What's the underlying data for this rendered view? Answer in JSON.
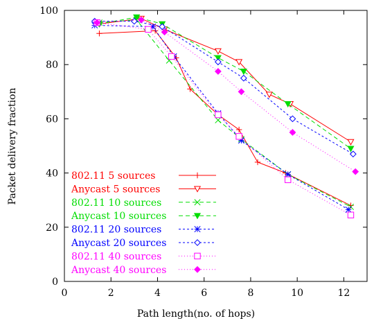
{
  "chart_data": {
    "type": "line",
    "title": "",
    "xlabel": "Path length(no. of hops)",
    "ylabel": "Packet delivery fraction",
    "xlim": [
      0,
      13
    ],
    "ylim": [
      0,
      100
    ],
    "xticks": [
      0,
      2,
      4,
      6,
      8,
      10,
      12
    ],
    "yticks": [
      0,
      20,
      40,
      60,
      80,
      100
    ],
    "grid": false,
    "legend_position": "bottom-left",
    "series": [
      {
        "name": "802.11 5 sources",
        "color": "#ff0000",
        "dash": "",
        "marker": "plus",
        "x": [
          1.5,
          3.9,
          4.8,
          5.4,
          6.6,
          7.5,
          8.3,
          9.5,
          12.3
        ],
        "y": [
          91.5,
          92.5,
          82.5,
          71,
          61.5,
          56,
          44,
          40,
          28
        ]
      },
      {
        "name": "Anycast 5 sources",
        "color": "#ff0000",
        "dash": "",
        "marker": "triangle-down",
        "x": [
          1.5,
          3.3,
          4.3,
          6.6,
          7.5,
          8.8,
          9.7,
          12.3
        ],
        "y": [
          95,
          97,
          93,
          85,
          81,
          69,
          65.5,
          51.5
        ]
      },
      {
        "name": "802.11 10 sources",
        "color": "#00dd00",
        "dash": "6,4",
        "marker": "x",
        "x": [
          1.5,
          3.1,
          4.5,
          6.6,
          7.6,
          9.6,
          12.3
        ],
        "y": [
          95.5,
          96.5,
          81.5,
          59.5,
          52.5,
          39.5,
          27.5
        ]
      },
      {
        "name": "Anycast 10 sources",
        "color": "#00dd00",
        "dash": "6,4",
        "marker": "triangle-down-filled",
        "x": [
          1.5,
          3.1,
          4.2,
          6.6,
          7.7,
          9.6,
          12.3
        ],
        "y": [
          95,
          97.5,
          95,
          82.5,
          77.5,
          65.5,
          49
        ]
      },
      {
        "name": "802.11 20 sources",
        "color": "#0000ff",
        "dash": "3,3",
        "marker": "star",
        "x": [
          1.3,
          3.8,
          4.7,
          6.6,
          7.6,
          9.6,
          12.2
        ],
        "y": [
          94.5,
          94,
          83,
          62,
          52,
          39.5,
          26.5
        ]
      },
      {
        "name": "Anycast 20 sources",
        "color": "#0000ff",
        "dash": "3,3",
        "marker": "diamond",
        "x": [
          1.3,
          3.0,
          4.2,
          6.6,
          7.7,
          9.8,
          12.4
        ],
        "y": [
          96,
          96,
          94,
          81,
          75,
          60,
          47
        ]
      },
      {
        "name": "802.11 40 sources",
        "color": "#ff00ff",
        "dash": "1,3",
        "marker": "square",
        "x": [
          1.4,
          3.6,
          4.6,
          6.6,
          7.5,
          9.6,
          12.3
        ],
        "y": [
          95.5,
          93,
          83,
          61.5,
          53.5,
          37.5,
          24.5
        ]
      },
      {
        "name": "Anycast 40 sources",
        "color": "#ff00ff",
        "dash": "1,3",
        "marker": "diamond-filled",
        "x": [
          1.4,
          3.3,
          4.3,
          6.6,
          7.6,
          9.8,
          12.5
        ],
        "y": [
          95.5,
          96.5,
          92,
          77.5,
          70,
          55,
          40.5
        ]
      }
    ]
  }
}
